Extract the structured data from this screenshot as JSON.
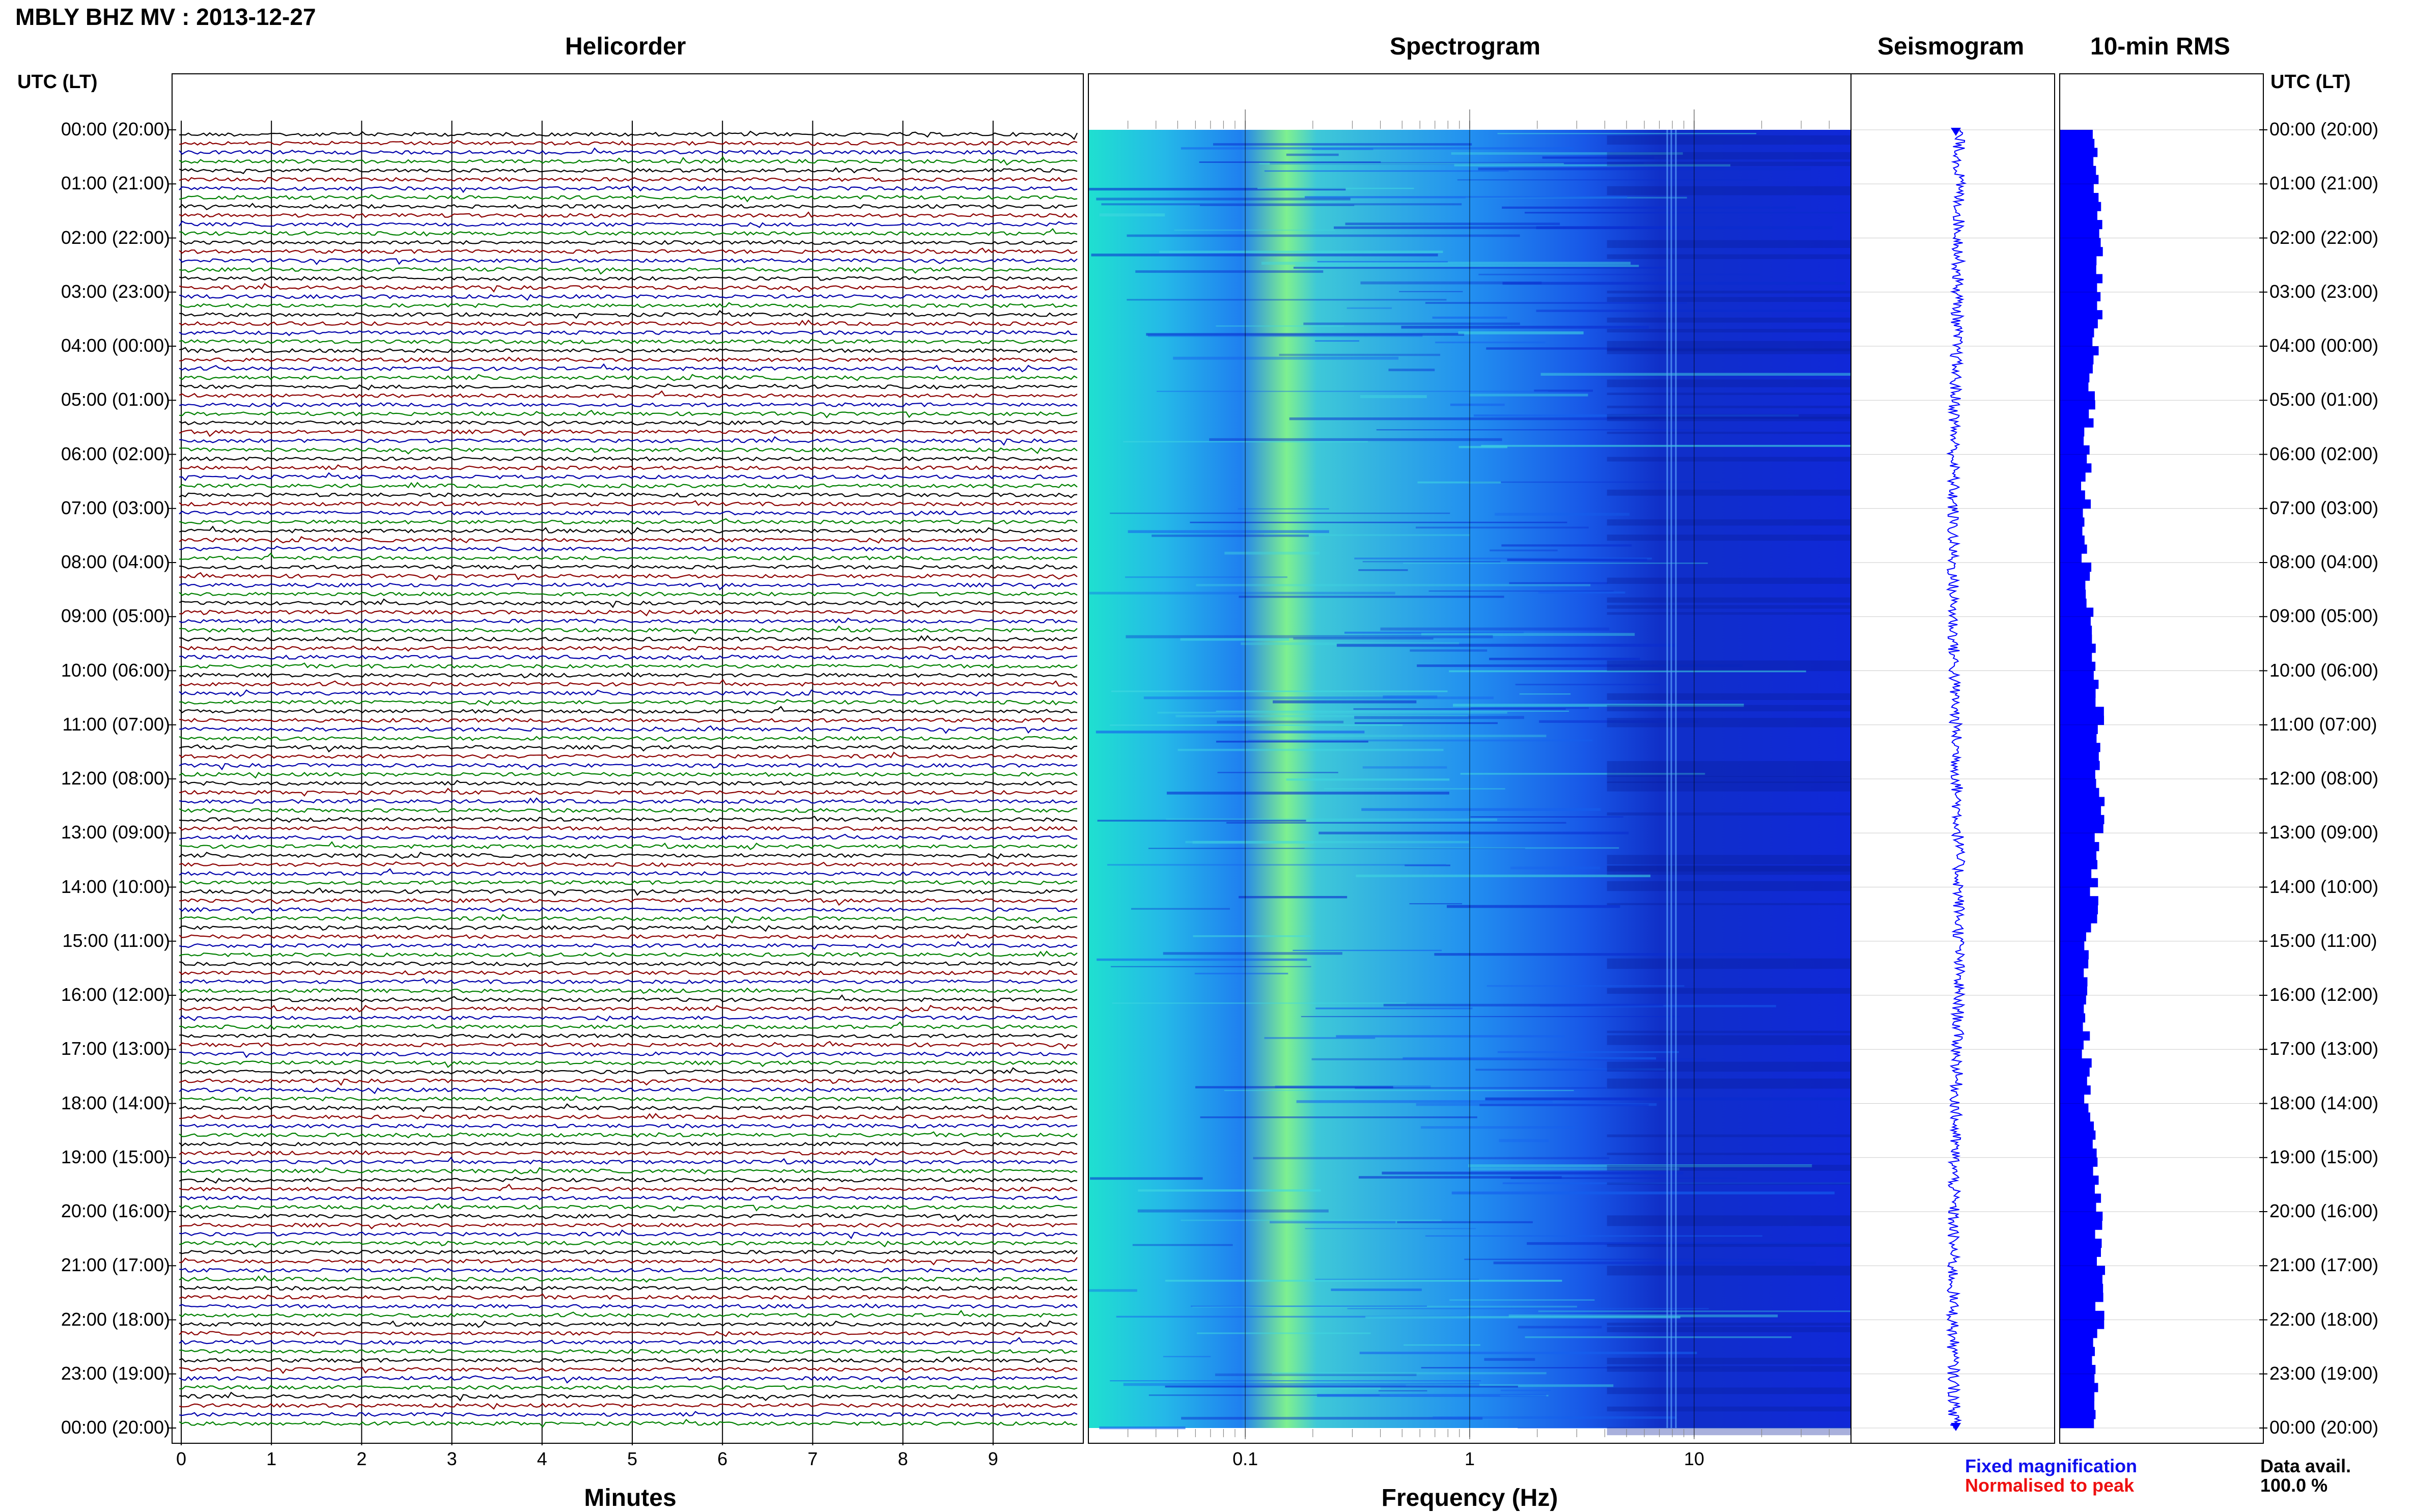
{
  "page": {
    "title": "MBLY BHZ MV : 2013-12-27",
    "panels": {
      "helicorder": "Helicorder",
      "spectrogram": "Spectrogram",
      "seismogram": "Seismogram",
      "rms": "10-min RMS"
    },
    "utc_label_left": "UTC (LT)",
    "utc_label_right": "UTC (LT)",
    "x_axis_minutes_title": "Minutes",
    "x_axis_frequency_title": "Frequency (Hz)",
    "legend_fixed": "Fixed magnification",
    "legend_normalised": "Normalised to peak",
    "data_avail_label": "Data avail.",
    "data_avail_value": "100.0 %"
  },
  "chart_data": [
    {
      "type": "line",
      "name": "helicorder",
      "title": "Helicorder",
      "xlabel": "Minutes",
      "xticks": [
        "0",
        "1",
        "2",
        "3",
        "4",
        "5",
        "6",
        "7",
        "8",
        "9"
      ],
      "xlim": [
        0,
        10
      ],
      "rows": 144,
      "trace_colors": [
        "#000000",
        "#8b0000",
        "#0000aa",
        "#008000"
      ]
    },
    {
      "type": "heatmap",
      "name": "spectrogram",
      "title": "Spectrogram",
      "xlabel": "Frequency (Hz)",
      "xscale": "log",
      "xlim": [
        0.02,
        50
      ],
      "xticks": [
        "0.1",
        "1",
        "10"
      ]
    },
    {
      "type": "line",
      "name": "seismogram",
      "title": "Seismogram"
    },
    {
      "type": "bar",
      "name": "rms",
      "title": "10-min RMS",
      "color": "#0000ff"
    }
  ],
  "time_labels": [
    "00:00 (20:00)",
    "01:00 (21:00)",
    "02:00 (22:00)",
    "03:00 (23:00)",
    "04:00 (00:00)",
    "05:00 (01:00)",
    "06:00 (02:00)",
    "07:00 (03:00)",
    "08:00 (04:00)",
    "09:00 (05:00)",
    "10:00 (06:00)",
    "11:00 (07:00)",
    "12:00 (08:00)",
    "13:00 (09:00)",
    "14:00 (10:00)",
    "15:00 (11:00)",
    "16:00 (12:00)",
    "17:00 (13:00)",
    "18:00 (14:00)",
    "19:00 (15:00)",
    "20:00 (16:00)",
    "21:00 (17:00)",
    "22:00 (18:00)",
    "23:00 (19:00)",
    "00:00 (20:00)"
  ]
}
